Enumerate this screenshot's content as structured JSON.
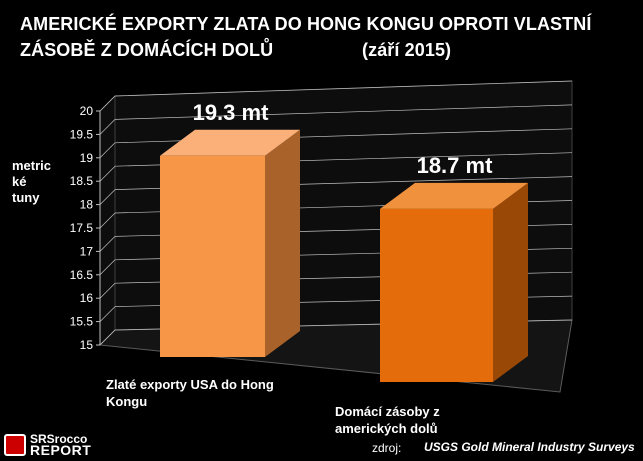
{
  "title": {
    "line1": "AMERICKÉ EXPORTY ZLATA DO HONG KONGU  OPROTI VLASTNÍ",
    "line2": "ZÁSOBĚ Z DOMÁCÍCH DOLŮ",
    "date": "(září 2015)"
  },
  "source": {
    "prefix": "zdroj:",
    "text": "USGS Gold Mineral Industry Surveys"
  },
  "logo": {
    "line1": "SRSrocco",
    "line2": "REPORT"
  },
  "colors": {
    "bar1": "#f79646",
    "bar2": "#e46c0a",
    "wall": "#0d0d0d",
    "grid": "#bfbfbf"
  },
  "chart_data": {
    "type": "bar",
    "categories": [
      "Zlaté exporty USA do Hong Kongu",
      "Domácí zásoby z amerických dolů"
    ],
    "values": [
      19.3,
      18.7
    ],
    "data_labels": [
      "19.3 mt",
      "18.7 mt"
    ],
    "ylabel": "metric ké tuny",
    "ylim": [
      15,
      20
    ],
    "yticks": [
      "15",
      "15.5",
      "16",
      "16.5",
      "17",
      "17.5",
      "18",
      "18.5",
      "19",
      "19.5",
      "20"
    ],
    "grid": true,
    "legend": "none",
    "style": "3d"
  }
}
